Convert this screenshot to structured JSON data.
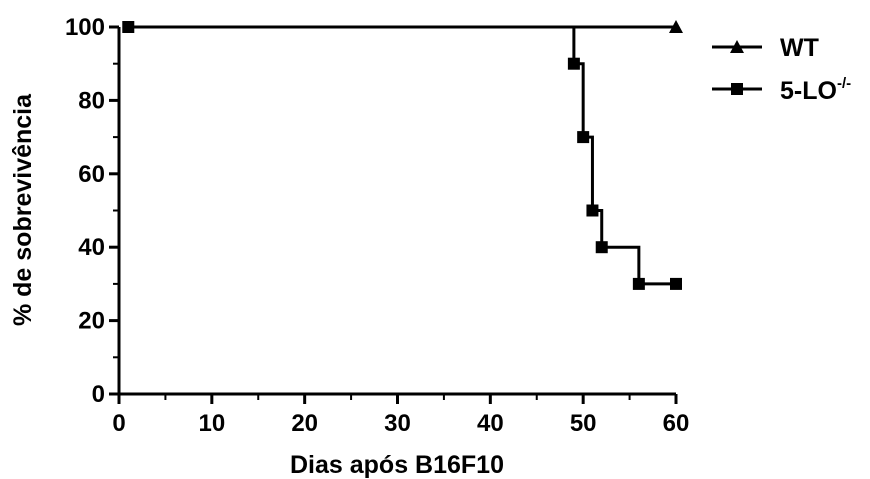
{
  "chart_data": {
    "type": "line",
    "title": "",
    "xlabel": "Dias após B16F10",
    "ylabel": "% de sobrevivência",
    "xlim": [
      0,
      60
    ],
    "ylim": [
      0,
      100
    ],
    "xticks": [
      "0",
      "10",
      "20",
      "30",
      "40",
      "50",
      "60"
    ],
    "yticks": [
      "0",
      "20",
      "40",
      "60",
      "80",
      "100"
    ],
    "grid": false,
    "legend_position": "top-right",
    "step": true,
    "series": [
      {
        "name": "WT",
        "marker": "triangle",
        "color": "#000000",
        "points": [
          [
            1,
            100
          ],
          [
            60,
            100
          ]
        ]
      },
      {
        "name": "5-LO",
        "name_superscript": "-/-",
        "marker": "square",
        "color": "#000000",
        "points": [
          [
            1,
            100
          ],
          [
            49,
            90
          ],
          [
            50,
            70
          ],
          [
            51,
            50
          ],
          [
            52,
            40
          ],
          [
            56,
            30
          ],
          [
            60,
            30
          ]
        ]
      }
    ]
  }
}
